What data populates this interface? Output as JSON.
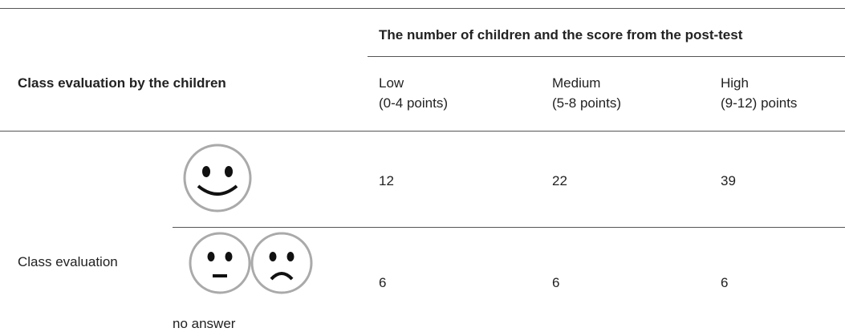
{
  "table": {
    "spanning_header": "The number of children and the score from the post-test",
    "row_header": "Class evaluation by the children",
    "columns": [
      {
        "name": "Low",
        "range": "(0-4 points)"
      },
      {
        "name": "Medium",
        "range": "(5-8 points)"
      },
      {
        "name": "High",
        "range": "(9-12) points"
      }
    ],
    "group_label": "Class evaluation",
    "rows": [
      {
        "values": [
          "12",
          "22",
          "39"
        ]
      },
      {
        "note": "no answer",
        "values": [
          "6",
          "6",
          "6"
        ]
      }
    ]
  }
}
